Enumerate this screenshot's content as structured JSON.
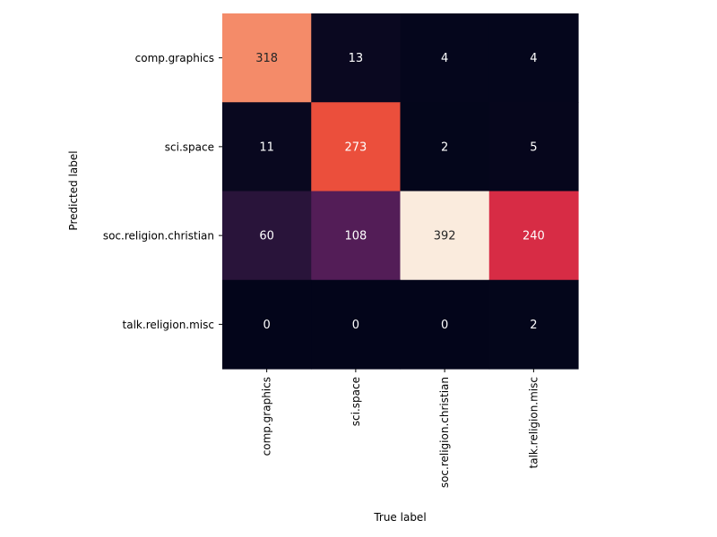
{
  "chart_data": {
    "type": "heatmap",
    "title": "",
    "xlabel": "True label",
    "ylabel": "Predicted label",
    "x_categories": [
      "comp.graphics",
      "sci.space",
      "soc.religion.christian",
      "talk.religion.misc"
    ],
    "y_categories": [
      "comp.graphics",
      "sci.space",
      "soc.religion.christian",
      "talk.religion.misc"
    ],
    "values": [
      [
        318,
        13,
        4,
        4
      ],
      [
        11,
        273,
        2,
        5
      ],
      [
        60,
        108,
        392,
        240
      ],
      [
        0,
        0,
        0,
        2
      ]
    ],
    "colormap": "rocket",
    "vmin": 0,
    "vmax": 392,
    "colorbar": false,
    "grid": false
  }
}
